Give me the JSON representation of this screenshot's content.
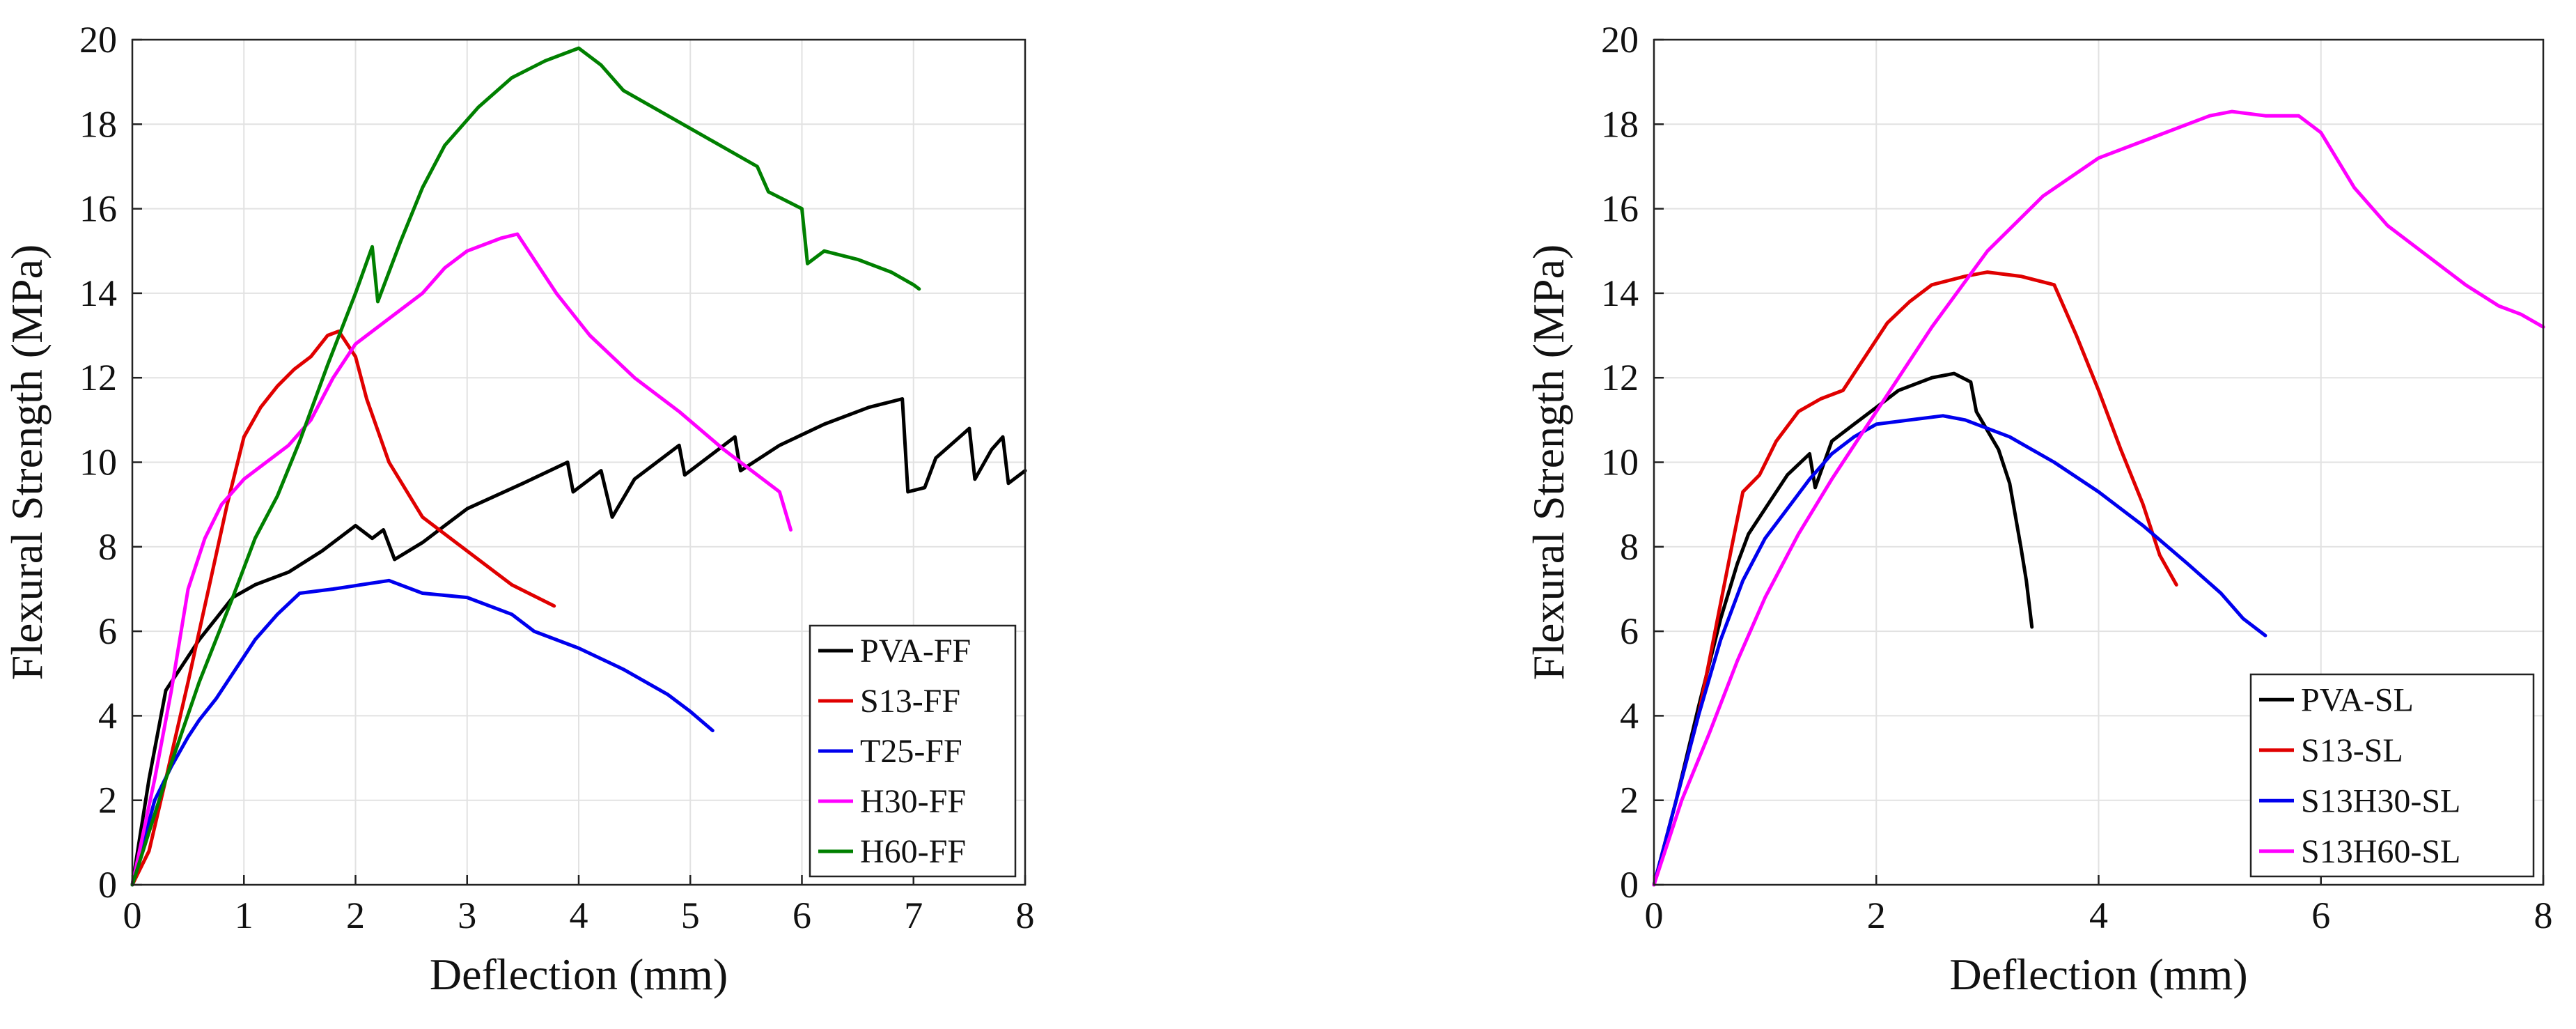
{
  "chart_data": [
    {
      "type": "line",
      "xlabel": "Deflection (mm)",
      "ylabel": "Flexural Strength (MPa)",
      "xlim": [
        0,
        8
      ],
      "ylim": [
        0,
        20
      ],
      "xticks": [
        "0",
        "1",
        "2",
        "3",
        "4",
        "5",
        "6",
        "7",
        "8"
      ],
      "yticks": [
        "0",
        "2",
        "4",
        "6",
        "8",
        "10",
        "12",
        "14",
        "16",
        "18",
        "20"
      ],
      "grid": true,
      "legend_position": "bottom-right",
      "series": [
        {
          "name": "PVA-FF",
          "color": "#000000",
          "points": [
            [
              0,
              0
            ],
            [
              0.15,
              2.5
            ],
            [
              0.3,
              4.6
            ],
            [
              0.45,
              5.2
            ],
            [
              0.6,
              5.8
            ],
            [
              0.75,
              6.3
            ],
            [
              0.9,
              6.8
            ],
            [
              1.1,
              7.1
            ],
            [
              1.4,
              7.4
            ],
            [
              1.7,
              7.9
            ],
            [
              2.0,
              8.5
            ],
            [
              2.15,
              8.2
            ],
            [
              2.25,
              8.4
            ],
            [
              2.35,
              7.7
            ],
            [
              2.6,
              8.1
            ],
            [
              3.0,
              8.9
            ],
            [
              3.5,
              9.5
            ],
            [
              3.9,
              10.0
            ],
            [
              3.95,
              9.3
            ],
            [
              4.2,
              9.8
            ],
            [
              4.3,
              8.7
            ],
            [
              4.5,
              9.6
            ],
            [
              4.9,
              10.4
            ],
            [
              4.95,
              9.7
            ],
            [
              5.4,
              10.6
            ],
            [
              5.45,
              9.8
            ],
            [
              5.8,
              10.4
            ],
            [
              6.2,
              10.9
            ],
            [
              6.6,
              11.3
            ],
            [
              6.9,
              11.5
            ],
            [
              6.95,
              9.3
            ],
            [
              7.1,
              9.4
            ],
            [
              7.2,
              10.1
            ],
            [
              7.5,
              10.8
            ],
            [
              7.55,
              9.6
            ],
            [
              7.7,
              10.3
            ],
            [
              7.8,
              10.6
            ],
            [
              7.85,
              9.5
            ],
            [
              8.0,
              9.8
            ]
          ]
        },
        {
          "name": "S13-FF",
          "color": "#e00000",
          "points": [
            [
              0,
              0
            ],
            [
              0.15,
              0.8
            ],
            [
              0.3,
              2.5
            ],
            [
              0.5,
              4.8
            ],
            [
              0.6,
              6.0
            ],
            [
              0.7,
              7.2
            ],
            [
              0.85,
              9.0
            ],
            [
              1.0,
              10.6
            ],
            [
              1.15,
              11.3
            ],
            [
              1.3,
              11.8
            ],
            [
              1.45,
              12.2
            ],
            [
              1.6,
              12.5
            ],
            [
              1.75,
              13.0
            ],
            [
              1.85,
              13.1
            ],
            [
              2.0,
              12.5
            ],
            [
              2.1,
              11.5
            ],
            [
              2.3,
              10.0
            ],
            [
              2.6,
              8.7
            ],
            [
              3.0,
              7.9
            ],
            [
              3.4,
              7.1
            ],
            [
              3.78,
              6.6
            ]
          ]
        },
        {
          "name": "T25-FF",
          "color": "#0000ee",
          "points": [
            [
              0,
              0
            ],
            [
              0.2,
              2.0
            ],
            [
              0.35,
              2.8
            ],
            [
              0.5,
              3.5
            ],
            [
              0.6,
              3.9
            ],
            [
              0.75,
              4.4
            ],
            [
              0.9,
              5.0
            ],
            [
              1.1,
              5.8
            ],
            [
              1.3,
              6.4
            ],
            [
              1.5,
              6.9
            ],
            [
              1.8,
              7.0
            ],
            [
              2.05,
              7.1
            ],
            [
              2.3,
              7.2
            ],
            [
              2.6,
              6.9
            ],
            [
              3.0,
              6.8
            ],
            [
              3.4,
              6.4
            ],
            [
              3.6,
              6.0
            ],
            [
              4.0,
              5.6
            ],
            [
              4.4,
              5.1
            ],
            [
              4.8,
              4.5
            ],
            [
              5.0,
              4.1
            ],
            [
              5.2,
              3.65
            ]
          ]
        },
        {
          "name": "H30-FF",
          "color": "#ff00ff",
          "points": [
            [
              0,
              0
            ],
            [
              0.2,
              2.5
            ],
            [
              0.35,
              4.6
            ],
            [
              0.5,
              7.0
            ],
            [
              0.65,
              8.2
            ],
            [
              0.8,
              9.0
            ],
            [
              1.0,
              9.6
            ],
            [
              1.2,
              10.0
            ],
            [
              1.4,
              10.4
            ],
            [
              1.6,
              11.0
            ],
            [
              1.8,
              12.0
            ],
            [
              2.0,
              12.8
            ],
            [
              2.3,
              13.4
            ],
            [
              2.6,
              14.0
            ],
            [
              2.8,
              14.6
            ],
            [
              3.0,
              15.0
            ],
            [
              3.3,
              15.3
            ],
            [
              3.45,
              15.4
            ],
            [
              3.6,
              14.8
            ],
            [
              3.8,
              14.0
            ],
            [
              4.1,
              13.0
            ],
            [
              4.5,
              12.0
            ],
            [
              4.9,
              11.2
            ],
            [
              5.3,
              10.3
            ],
            [
              5.6,
              9.7
            ],
            [
              5.8,
              9.3
            ],
            [
              5.9,
              8.4
            ]
          ]
        },
        {
          "name": "H60-FF",
          "color": "#008000",
          "points": [
            [
              0,
              0
            ],
            [
              0.3,
              2.5
            ],
            [
              0.6,
              4.8
            ],
            [
              0.9,
              6.8
            ],
            [
              1.1,
              8.2
            ],
            [
              1.3,
              9.2
            ],
            [
              1.5,
              10.5
            ],
            [
              1.75,
              12.3
            ],
            [
              2.0,
              14.0
            ],
            [
              2.15,
              15.1
            ],
            [
              2.2,
              13.8
            ],
            [
              2.4,
              15.2
            ],
            [
              2.6,
              16.5
            ],
            [
              2.8,
              17.5
            ],
            [
              3.1,
              18.4
            ],
            [
              3.4,
              19.1
            ],
            [
              3.7,
              19.5
            ],
            [
              4.0,
              19.8
            ],
            [
              4.2,
              19.4
            ],
            [
              4.4,
              18.8
            ],
            [
              4.8,
              18.2
            ],
            [
              5.2,
              17.6
            ],
            [
              5.6,
              17.0
            ],
            [
              5.7,
              16.4
            ],
            [
              6.0,
              16.0
            ],
            [
              6.05,
              14.7
            ],
            [
              6.2,
              15.0
            ],
            [
              6.5,
              14.8
            ],
            [
              6.8,
              14.5
            ],
            [
              7.0,
              14.2
            ],
            [
              7.05,
              14.1
            ]
          ]
        }
      ]
    },
    {
      "type": "line",
      "xlabel": "Deflection (mm)",
      "ylabel": "Flexural Strength (MPa)",
      "xlim": [
        0,
        8
      ],
      "ylim": [
        0,
        20
      ],
      "xticks": [
        "0",
        "2",
        "4",
        "6",
        "8"
      ],
      "yticks": [
        "0",
        "2",
        "4",
        "6",
        "8",
        "10",
        "12",
        "14",
        "16",
        "18",
        "20"
      ],
      "grid": true,
      "legend_position": "bottom-right",
      "series": [
        {
          "name": "PVA-SL",
          "color": "#000000",
          "points": [
            [
              0,
              0
            ],
            [
              0.2,
              2.0
            ],
            [
              0.4,
              4.2
            ],
            [
              0.6,
              6.3
            ],
            [
              0.75,
              7.6
            ],
            [
              0.85,
              8.3
            ],
            [
              1.0,
              8.9
            ],
            [
              1.2,
              9.7
            ],
            [
              1.4,
              10.2
            ],
            [
              1.45,
              9.4
            ],
            [
              1.6,
              10.5
            ],
            [
              1.8,
              10.9
            ],
            [
              2.0,
              11.3
            ],
            [
              2.2,
              11.7
            ],
            [
              2.5,
              12.0
            ],
            [
              2.7,
              12.1
            ],
            [
              2.85,
              11.9
            ],
            [
              2.9,
              11.2
            ],
            [
              3.1,
              10.3
            ],
            [
              3.2,
              9.5
            ],
            [
              3.3,
              8.0
            ],
            [
              3.35,
              7.2
            ],
            [
              3.4,
              6.1
            ]
          ]
        },
        {
          "name": "S13-SL",
          "color": "#e00000",
          "points": [
            [
              0,
              0
            ],
            [
              0.2,
              2.0
            ],
            [
              0.4,
              4.0
            ],
            [
              0.55,
              6.0
            ],
            [
              0.7,
              8.0
            ],
            [
              0.8,
              9.3
            ],
            [
              0.95,
              9.7
            ],
            [
              1.1,
              10.5
            ],
            [
              1.3,
              11.2
            ],
            [
              1.5,
              11.5
            ],
            [
              1.7,
              11.7
            ],
            [
              1.9,
              12.5
            ],
            [
              2.1,
              13.3
            ],
            [
              2.3,
              13.8
            ],
            [
              2.5,
              14.2
            ],
            [
              2.8,
              14.4
            ],
            [
              3.0,
              14.5
            ],
            [
              3.3,
              14.4
            ],
            [
              3.6,
              14.2
            ],
            [
              3.8,
              13.0
            ],
            [
              4.0,
              11.7
            ],
            [
              4.2,
              10.3
            ],
            [
              4.4,
              9.0
            ],
            [
              4.55,
              7.8
            ],
            [
              4.7,
              7.1
            ]
          ]
        },
        {
          "name": "S13H30-SL",
          "color": "#0000ee",
          "points": [
            [
              0,
              0
            ],
            [
              0.2,
              2.0
            ],
            [
              0.4,
              4.0
            ],
            [
              0.6,
              5.8
            ],
            [
              0.8,
              7.2
            ],
            [
              1.0,
              8.2
            ],
            [
              1.2,
              8.9
            ],
            [
              1.4,
              9.6
            ],
            [
              1.6,
              10.2
            ],
            [
              1.8,
              10.6
            ],
            [
              2.0,
              10.9
            ],
            [
              2.3,
              11.0
            ],
            [
              2.6,
              11.1
            ],
            [
              2.8,
              11.0
            ],
            [
              3.2,
              10.6
            ],
            [
              3.6,
              10.0
            ],
            [
              4.0,
              9.3
            ],
            [
              4.4,
              8.5
            ],
            [
              4.8,
              7.6
            ],
            [
              5.1,
              6.9
            ],
            [
              5.3,
              6.3
            ],
            [
              5.5,
              5.9
            ]
          ]
        },
        {
          "name": "S13H60-SL",
          "color": "#ff00ff",
          "points": [
            [
              0,
              0
            ],
            [
              0.25,
              2.0
            ],
            [
              0.5,
              3.6
            ],
            [
              0.75,
              5.3
            ],
            [
              1.0,
              6.8
            ],
            [
              1.3,
              8.3
            ],
            [
              1.6,
              9.6
            ],
            [
              2.0,
              11.2
            ],
            [
              2.5,
              13.2
            ],
            [
              3.0,
              15.0
            ],
            [
              3.5,
              16.3
            ],
            [
              4.0,
              17.2
            ],
            [
              4.5,
              17.7
            ],
            [
              5.0,
              18.2
            ],
            [
              5.2,
              18.3
            ],
            [
              5.5,
              18.2
            ],
            [
              5.8,
              18.2
            ],
            [
              6.0,
              17.8
            ],
            [
              6.3,
              16.5
            ],
            [
              6.6,
              15.6
            ],
            [
              7.0,
              14.8
            ],
            [
              7.3,
              14.2
            ],
            [
              7.6,
              13.7
            ],
            [
              7.8,
              13.5
            ],
            [
              8.0,
              13.2
            ]
          ]
        }
      ]
    }
  ]
}
